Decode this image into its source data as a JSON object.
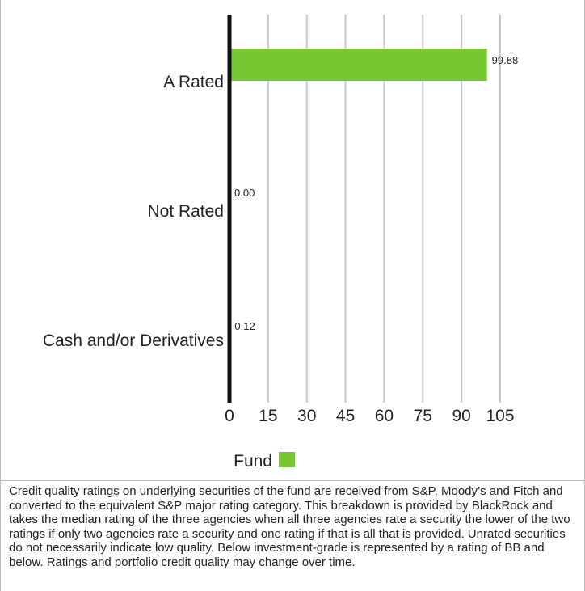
{
  "chart_data": {
    "type": "bar",
    "orientation": "horizontal",
    "categories": [
      "A Rated",
      "Not Rated",
      "Cash and/or Derivatives"
    ],
    "values": [
      99.88,
      0.0,
      0.12
    ],
    "value_labels": [
      "99.88",
      "0.00",
      "0.12"
    ],
    "xlim": [
      0,
      105
    ],
    "x_ticks": [
      "0",
      "15",
      "30",
      "45",
      "60",
      "75",
      "90",
      "105"
    ],
    "grid": "vertical",
    "legend": {
      "placement": "bottom",
      "label": "Fund"
    },
    "colors": {
      "bar": "#76c732",
      "gridline": "#c8c8c8",
      "axis": "#111111",
      "text": "#222222"
    }
  },
  "footnote": "Credit quality ratings on underlying securities of the fund are received from S&P, Moody’s and Fitch and converted to the equivalent S&P major rating category. This breakdown is provided by BlackRock and takes the median rating of the three agencies when all three agencies rate a security the lower of the two ratings if only two agencies rate a security and one rating if that is all that is provided. Unrated securities do not necessarily indicate low quality. Below investment-grade is represented by a rating of BB and below. Ratings and portfolio credit quality may change over time."
}
